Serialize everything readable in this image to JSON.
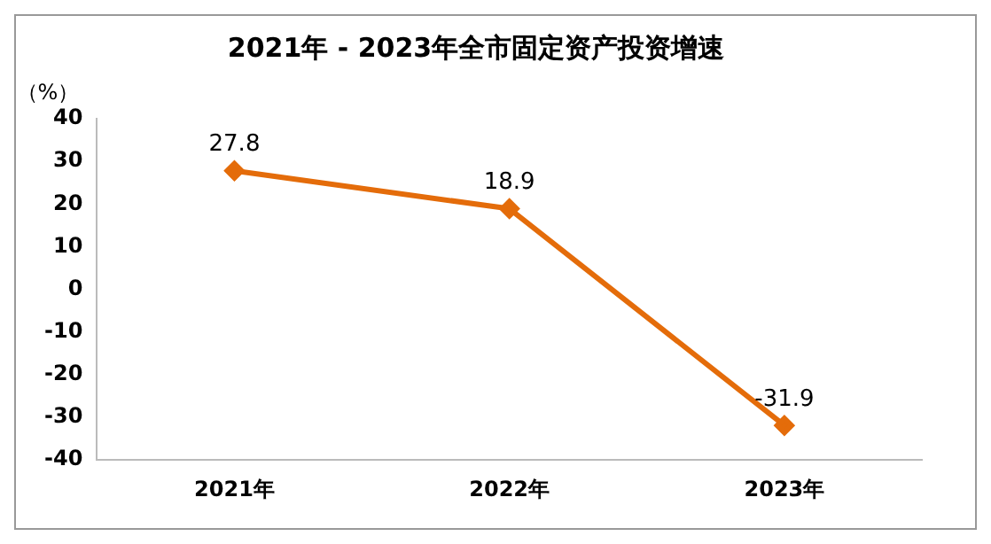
{
  "chart_data": {
    "type": "line",
    "title": "2021年 - 2023年全市固定资产投资增速",
    "ylabel": "（%）",
    "categories": [
      "2021年",
      "2022年",
      "2023年"
    ],
    "series": [
      {
        "color": "#e46c0a",
        "values": [
          27.8,
          18.9,
          -31.9
        ]
      }
    ],
    "ylim": [
      -40,
      40
    ],
    "yticks": [
      -40,
      -30,
      -20,
      -10,
      0,
      10,
      20,
      30,
      40
    ],
    "grid": false,
    "legend": false,
    "marker": "diamond",
    "line_style": "solid",
    "data_labels": true
  }
}
